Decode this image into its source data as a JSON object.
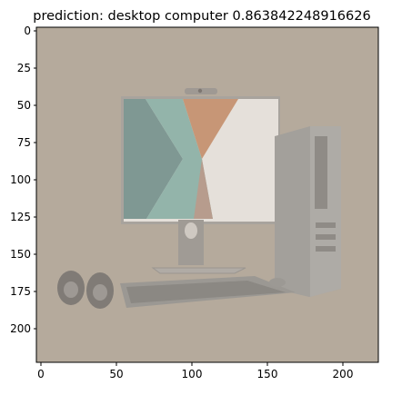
{
  "title": "prediction: desktop computer 0.863842248916626",
  "image_subject": "desktop computer with monitor, tower, keyboard, mouse and speakers",
  "axes": {
    "x_ticks": [
      "0",
      "50",
      "100",
      "150",
      "200"
    ],
    "y_ticks": [
      "0",
      "25",
      "50",
      "75",
      "100",
      "125",
      "150",
      "175",
      "200"
    ]
  },
  "colors": {
    "image_background": "#b5aa9c",
    "screen_left": "#7f9893",
    "screen_orange": "#c79676",
    "screen_teal": "#93b4aa",
    "device_gray": "#9e9b95"
  }
}
